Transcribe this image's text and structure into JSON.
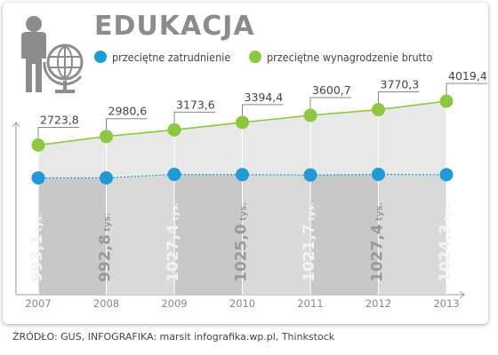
{
  "title": "EDUKACJA",
  "legend": {
    "employment": "przeciętne zatrudnienie",
    "salary": "przeciętne wynagrodzenie brutto"
  },
  "source": "ŹRÓDŁO: GUS, INFOGRAFIKA: marsit infografika.wp.pl, Thinkstock",
  "colors": {
    "employment": "#1e9bd7",
    "salary": "#8dc63f",
    "column_dark": "#c8c8c8",
    "column_light": "#e8e8e8",
    "title": "#8c8c8c",
    "icon": "#8c8c8c"
  },
  "icon": "teacher-with-globe-icon",
  "chart_data": {
    "type": "line",
    "categories": [
      "2007",
      "2008",
      "2009",
      "2010",
      "2011",
      "2012",
      "2013"
    ],
    "series": [
      {
        "name": "przeciętne wynagrodzenie brutto",
        "values": [
          2723.8,
          2980.6,
          3173.6,
          3394.4,
          3600.7,
          3770.3,
          4019.4
        ],
        "labels": [
          "2723,8",
          "2980,6",
          "3173,6",
          "3394,4",
          "3600,7",
          "3770,3",
          "4019,4"
        ]
      },
      {
        "name": "przeciętne zatrudnienie",
        "values": [
          993.1,
          992.8,
          1027.4,
          1025.0,
          1021.7,
          1027.4,
          1024.3
        ],
        "labels": [
          "993,1 tys.",
          "992,8 tys.",
          "1027,4 tys.",
          "1025,0 tys.",
          "1021,7 tys.",
          "1027,4 tys.",
          "1024,3 tys."
        ]
      }
    ],
    "legend_position": "top",
    "grid": false
  }
}
